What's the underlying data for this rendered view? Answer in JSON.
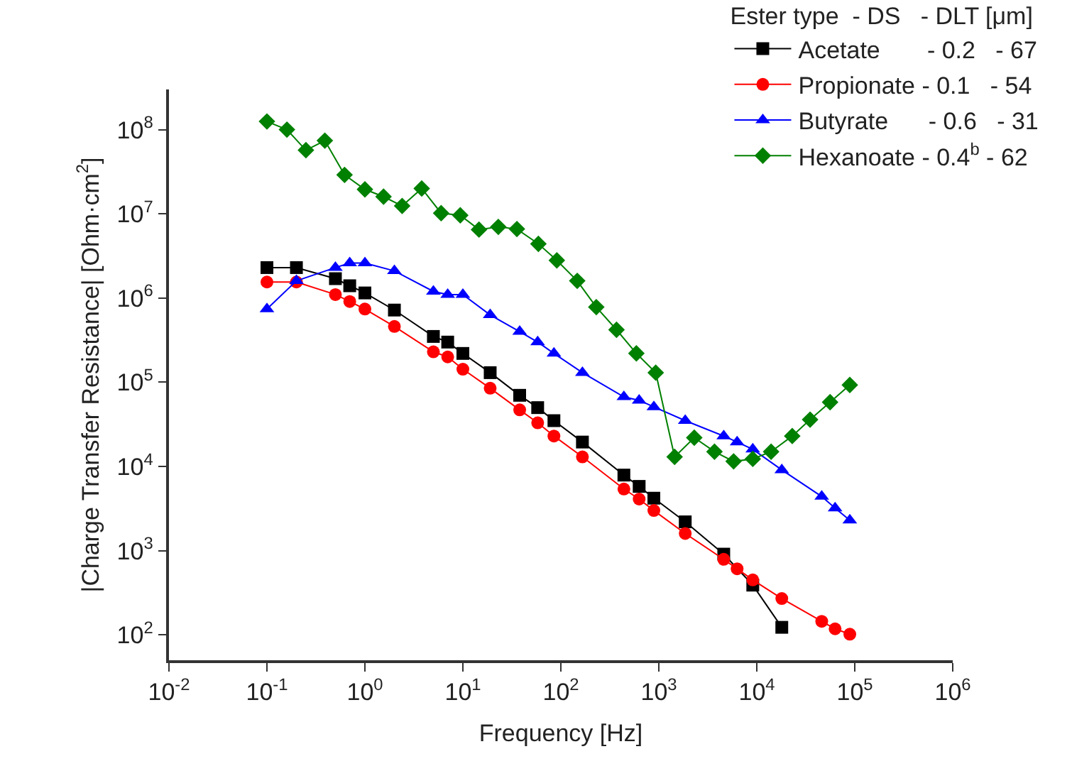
{
  "chart_data": {
    "type": "line",
    "xlabel": "Frequency [Hz]",
    "ylabel": "|Charge Transfer Resistance| [Ohm·cm$^{2}$]",
    "legend_title": "Ester type  - DS   - DLT [μm]",
    "log": "xy",
    "legend": "top right",
    "line_style": "solid",
    "xlim": [
      0.01,
      1000000
    ],
    "ylim": [
      50,
      300000000
    ],
    "xticks": [
      {
        "value": 0.01,
        "label": "10$^{-2}$"
      },
      {
        "value": 0.1,
        "label": "10$^{-1}$"
      },
      {
        "value": 1,
        "label": "10$^{0}$"
      },
      {
        "value": 10,
        "label": "10$^{1}$"
      },
      {
        "value": 100,
        "label": "10$^{2}$"
      },
      {
        "value": 1000,
        "label": "10$^{3}$"
      },
      {
        "value": 10000,
        "label": "10$^{4}$"
      },
      {
        "value": 100000,
        "label": "10$^{5}$"
      },
      {
        "value": 1000000,
        "label": "10$^{6}$"
      }
    ],
    "yticks": [
      {
        "value": 100,
        "label": "10$^{2}$"
      },
      {
        "value": 1000,
        "label": "10$^{3}$"
      },
      {
        "value": 10000,
        "label": "10$^{4}$"
      },
      {
        "value": 100000,
        "label": "10$^{5}$"
      },
      {
        "value": 1000000,
        "label": "10$^{6}$"
      },
      {
        "value": 10000000,
        "label": "10$^{7}$"
      },
      {
        "value": 100000000,
        "label": "10$^{8}$"
      }
    ],
    "series": [
      {
        "name": "Acetate       - 0.2   - 67",
        "color": "#000000",
        "marker": "square",
        "x": [
          0.1,
          0.2,
          0.5,
          0.7,
          1,
          2,
          5,
          7,
          10,
          19,
          38,
          58,
          85,
          166,
          440,
          630,
          890,
          1860,
          4600,
          9100,
          18000
        ],
        "values": [
          2300000,
          2300000,
          1700000,
          1400000,
          1150000,
          720000,
          350000,
          300000,
          220000,
          130000,
          70000,
          50000,
          35000,
          19500,
          7900,
          5800,
          4200,
          2200,
          910,
          390,
          123
        ]
      },
      {
        "name": "Propionate - 0.1   - 54",
        "color": "#ff0000",
        "marker": "circle",
        "x": [
          0.1,
          0.2,
          0.5,
          0.7,
          1,
          2,
          5,
          7,
          10,
          19,
          38,
          58,
          85,
          166,
          440,
          630,
          890,
          1860,
          4600,
          6300,
          9100,
          18000,
          46000,
          63000,
          89000
        ],
        "values": [
          1550000,
          1550000,
          1100000,
          910000,
          740000,
          460000,
          230000,
          200000,
          143000,
          85000,
          47000,
          33000,
          23000,
          13000,
          5400,
          4100,
          3000,
          1600,
          790,
          610,
          450,
          270,
          145,
          118,
          102
        ]
      },
      {
        "name": "Butyrate      - 0.6   - 31",
        "color": "#0000ff",
        "marker": "triangle",
        "x": [
          0.1,
          0.2,
          0.5,
          0.7,
          1,
          2,
          5,
          7,
          10,
          19,
          38,
          58,
          85,
          166,
          440,
          630,
          890,
          1860,
          4600,
          6300,
          9100,
          18000,
          46000,
          63000,
          89000
        ],
        "values": [
          740000,
          1600000,
          2300000,
          2600000,
          2600000,
          2100000,
          1200000,
          1100000,
          1100000,
          630000,
          400000,
          300000,
          220000,
          130000,
          67000,
          61000,
          51000,
          35000,
          23000,
          19500,
          16000,
          9100,
          4400,
          3200,
          2300
        ]
      },
      {
        "name": "Hexanoate - 0.4$^{b}$ - 62",
        "color": "#008000",
        "marker": "diamond",
        "x": [
          0.1,
          0.16,
          0.25,
          0.39,
          0.62,
          1,
          1.55,
          2.4,
          3.8,
          6,
          9.4,
          14.6,
          23,
          35.6,
          59,
          91,
          147,
          230,
          370,
          590,
          930,
          1450,
          2300,
          3700,
          5800,
          9100,
          14000,
          23000,
          35000,
          56000,
          89000
        ],
        "values": [
          125000000,
          100000000,
          57000000,
          74000000,
          29000000,
          19500000,
          16000000,
          12400000,
          20000000,
          10200000,
          9600000,
          6500000,
          7000000,
          6600000,
          4400000,
          2800000,
          1600000,
          780000,
          420000,
          220000,
          130000,
          13000,
          22000,
          15000,
          11500,
          12300,
          15000,
          23000,
          36000,
          58000,
          93000
        ]
      }
    ]
  }
}
